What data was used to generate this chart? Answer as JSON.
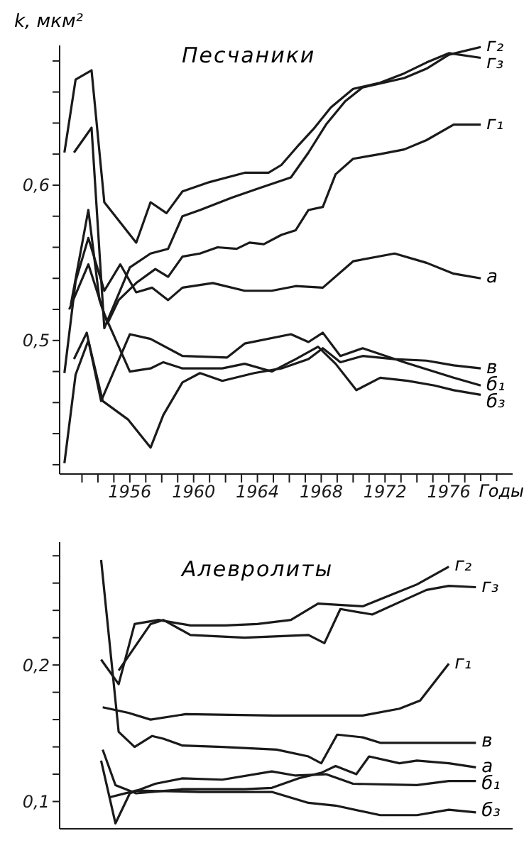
{
  "chart_data": [
    {
      "type": "line",
      "title": "Песчаники",
      "xlabel": "Годы",
      "ylabel": "k, мкм²",
      "xlim": [
        1951.6,
        1980
      ],
      "xticks": [
        {
          "value": 1953,
          "label": null
        },
        {
          "value": 1954,
          "label": null
        },
        {
          "value": 1955,
          "label": null
        },
        1956,
        {
          "value": 1957,
          "label": null
        },
        {
          "value": 1958,
          "label": null
        },
        {
          "value": 1959,
          "label": null
        },
        1960,
        {
          "value": 1961,
          "label": null
        },
        {
          "value": 1962,
          "label": null
        },
        {
          "value": 1963,
          "label": null
        },
        1964,
        {
          "value": 1965,
          "label": null
        },
        {
          "value": 1966,
          "label": null
        },
        {
          "value": 1967,
          "label": null
        },
        1968,
        {
          "value": 1969,
          "label": null
        },
        {
          "value": 1970,
          "label": null
        },
        {
          "value": 1971,
          "label": null
        },
        1972,
        {
          "value": 1973,
          "label": null
        },
        {
          "value": 1974,
          "label": null
        },
        {
          "value": 1975,
          "label": null
        },
        1976,
        {
          "value": 1977,
          "label": null
        },
        {
          "value": 1978,
          "label": null
        },
        {
          "value": 1979,
          "label": null
        }
      ],
      "ylim": [
        0.414,
        0.69
      ],
      "yticks": [
        {
          "value": 0.42,
          "label": null
        },
        {
          "value": 0.44,
          "label": null
        },
        {
          "value": 0.46,
          "label": null
        },
        {
          "value": 0.48,
          "label": null
        },
        {
          "value": 0.5,
          "label": "0,5"
        },
        {
          "value": 0.52,
          "label": null
        },
        {
          "value": 0.54,
          "label": null
        },
        {
          "value": 0.56,
          "label": null
        },
        {
          "value": 0.58,
          "label": null
        },
        {
          "value": 0.6,
          "label": "0,6"
        },
        {
          "value": 0.62,
          "label": null
        },
        {
          "value": 0.64,
          "label": null
        },
        {
          "value": 0.66,
          "label": null
        },
        {
          "value": 0.68,
          "label": null
        }
      ],
      "grid": false,
      "legend": false,
      "marker": "none",
      "series": [
        {
          "name": "г₂",
          "color": "#1a1a1a",
          "x": [
            1952.5,
            1953.6,
            1954.4,
            1956,
            1957.3,
            1958.4,
            1959.3,
            1960.4,
            1962.4,
            1964.1,
            1966.1,
            1967.2,
            1968.3,
            1969.5,
            1970.6,
            1973.2,
            1974.6,
            1976,
            1978
          ],
          "values": [
            0.621,
            0.637,
            0.508,
            0.547,
            0.556,
            0.559,
            0.58,
            0.584,
            0.592,
            0.598,
            0.605,
            0.621,
            0.639,
            0.654,
            0.663,
            0.669,
            0.675,
            0.684,
            0.689
          ]
        },
        {
          "name": "г₃",
          "color": "#1a1a1a",
          "x": [
            1951.9,
            1952.6,
            1953.6,
            1954.4,
            1956.4,
            1957.3,
            1958.3,
            1959.3,
            1961,
            1963.2,
            1964.7,
            1965.5,
            1966.6,
            1967.5,
            1968.6,
            1970,
            1971.7,
            1973.2,
            1974.6,
            1976,
            1978
          ],
          "values": [
            0.621,
            0.668,
            0.674,
            0.589,
            0.563,
            0.589,
            0.582,
            0.596,
            0.602,
            0.608,
            0.608,
            0.613,
            0.626,
            0.636,
            0.65,
            0.662,
            0.666,
            0.672,
            0.679,
            0.685,
            0.682
          ]
        },
        {
          "name": "г₁",
          "color": "#1a1a1a",
          "x": [
            1952.3,
            1953.4,
            1954.1,
            1954.6,
            1955.3,
            1956.4,
            1957.6,
            1958.4,
            1959.3,
            1960.4,
            1961.5,
            1962.7,
            1963.5,
            1964.4,
            1965.5,
            1966.4,
            1967.2,
            1968.1,
            1968.9,
            1970,
            1971.7,
            1973.2,
            1974.6,
            1976.3,
            1978
          ],
          "values": [
            0.523,
            0.584,
            0.526,
            0.511,
            0.526,
            0.537,
            0.546,
            0.541,
            0.554,
            0.556,
            0.56,
            0.559,
            0.563,
            0.562,
            0.568,
            0.571,
            0.584,
            0.586,
            0.607,
            0.617,
            0.62,
            0.623,
            0.629,
            0.639,
            0.639
          ]
        },
        {
          "name": "а",
          "color": "#1a1a1a",
          "x": [
            1951.9,
            1952.6,
            1953.4,
            1954.4,
            1955.4,
            1956.4,
            1957.4,
            1958.4,
            1959.3,
            1961.2,
            1963.2,
            1964.9,
            1966.4,
            1968.1,
            1970,
            1972.6,
            1974.6,
            1976.3,
            1978
          ],
          "values": [
            0.479,
            0.538,
            0.566,
            0.532,
            0.549,
            0.531,
            0.534,
            0.526,
            0.534,
            0.537,
            0.532,
            0.532,
            0.535,
            0.534,
            0.551,
            0.556,
            0.55,
            0.543,
            0.54
          ]
        },
        {
          "name": "в",
          "color": "#1a1a1a",
          "x": [
            1951.9,
            1952.6,
            1953.4,
            1954.3,
            1955.9,
            1957.3,
            1958.1,
            1959.3,
            1960.4,
            1961.8,
            1963.8,
            1965.5,
            1967.2,
            1968.1,
            1969.2,
            1970.6,
            1972.6,
            1974.6,
            1976.3,
            1978
          ],
          "values": [
            0.421,
            0.478,
            0.5,
            0.461,
            0.449,
            0.431,
            0.452,
            0.473,
            0.479,
            0.474,
            0.479,
            0.482,
            0.488,
            0.495,
            0.486,
            0.49,
            0.488,
            0.487,
            0.484,
            0.482
          ]
        },
        {
          "name": "б₁",
          "color": "#1a1a1a",
          "x": [
            1952.5,
            1953.3,
            1954.2,
            1956,
            1957.3,
            1959.3,
            1962.1,
            1963.2,
            1966.1,
            1967.2,
            1968.1,
            1969.2,
            1970.6,
            1973.2,
            1976.3,
            1978
          ],
          "values": [
            0.488,
            0.505,
            0.461,
            0.504,
            0.501,
            0.49,
            0.489,
            0.498,
            0.504,
            0.499,
            0.505,
            0.49,
            0.495,
            0.486,
            0.476,
            0.471
          ]
        },
        {
          "name": "б₃",
          "color": "#1a1a1a",
          "x": [
            1952.2,
            1953.4,
            1954.4,
            1956,
            1957.3,
            1958.1,
            1959.3,
            1961.8,
            1963.2,
            1964.9,
            1966.4,
            1967.8,
            1968.9,
            1970.2,
            1971.7,
            1973.4,
            1975.1,
            1976.3,
            1978
          ],
          "values": [
            0.52,
            0.549,
            0.517,
            0.48,
            0.482,
            0.486,
            0.482,
            0.482,
            0.485,
            0.48,
            0.488,
            0.496,
            0.485,
            0.468,
            0.476,
            0.474,
            0.471,
            0.468,
            0.465
          ]
        }
      ]
    },
    {
      "type": "line",
      "title": "Алевролиты",
      "tick_labels": "y",
      "xlim": [
        1951.6,
        1980
      ],
      "ylim": [
        0.08,
        0.29
      ],
      "yticks": [
        {
          "value": 0.1,
          "label": "0,1"
        },
        {
          "value": 0.12,
          "label": null
        },
        {
          "value": 0.14,
          "label": null
        },
        {
          "value": 0.16,
          "label": null
        },
        {
          "value": 0.18,
          "label": null
        },
        {
          "value": 0.2,
          "label": "0,2"
        },
        {
          "value": 0.22,
          "label": null
        },
        {
          "value": 0.24,
          "label": null
        },
        {
          "value": 0.26,
          "label": null
        },
        {
          "value": 0.28,
          "label": null
        }
      ],
      "grid": false,
      "legend": false,
      "marker": "none",
      "series": [
        {
          "name": "г₂",
          "color": "#1a1a1a",
          "x": [
            1954.2,
            1955.3,
            1956.3,
            1957.8,
            1959.8,
            1962,
            1964,
            1966.1,
            1967.8,
            1970.6,
            1972.3,
            1974,
            1976
          ],
          "values": [
            0.204,
            0.186,
            0.23,
            0.233,
            0.229,
            0.229,
            0.23,
            0.233,
            0.245,
            0.243,
            0.251,
            0.259,
            0.272
          ]
        },
        {
          "name": "г₃",
          "color": "#1a1a1a",
          "x": [
            1955.3,
            1957.3,
            1958.1,
            1959.8,
            1963.2,
            1967.2,
            1968.2,
            1969.2,
            1971.2,
            1972.9,
            1974.6,
            1976,
            1977.7
          ],
          "values": [
            0.196,
            0.23,
            0.233,
            0.222,
            0.22,
            0.222,
            0.216,
            0.241,
            0.237,
            0.246,
            0.255,
            0.258,
            0.257
          ]
        },
        {
          "name": "г₁",
          "color": "#1a1a1a",
          "x": [
            1954.3,
            1955.9,
            1957.3,
            1959.5,
            1965,
            1970.6,
            1972.9,
            1974.2,
            1976
          ],
          "values": [
            0.169,
            0.165,
            0.16,
            0.164,
            0.163,
            0.163,
            0.168,
            0.174,
            0.201
          ]
        },
        {
          "name": "в",
          "color": "#1a1a1a",
          "x": [
            1954.2,
            1955.3,
            1956.3,
            1957.4,
            1958.1,
            1959.3,
            1961.8,
            1965.2,
            1967.2,
            1968,
            1969,
            1970.6,
            1971.7,
            1977.7
          ],
          "values": [
            0.277,
            0.151,
            0.14,
            0.148,
            0.146,
            0.141,
            0.14,
            0.138,
            0.133,
            0.128,
            0.149,
            0.147,
            0.143,
            0.143
          ]
        },
        {
          "name": "а",
          "color": "#1a1a1a",
          "x": [
            1954.3,
            1955.1,
            1956.4,
            1959.3,
            1963.2,
            1964.9,
            1966.6,
            1968,
            1968.9,
            1970.2,
            1971,
            1972.9,
            1974,
            1976,
            1977.7
          ],
          "values": [
            0.138,
            0.112,
            0.106,
            0.109,
            0.109,
            0.11,
            0.117,
            0.121,
            0.126,
            0.12,
            0.133,
            0.128,
            0.13,
            0.128,
            0.125
          ]
        },
        {
          "name": "б₁",
          "color": "#1a1a1a",
          "x": [
            1954.2,
            1955.1,
            1956,
            1957.6,
            1959.3,
            1961.8,
            1964.9,
            1966.4,
            1968.3,
            1970,
            1974,
            1976,
            1977.7
          ],
          "values": [
            0.13,
            0.084,
            0.106,
            0.113,
            0.117,
            0.116,
            0.122,
            0.119,
            0.12,
            0.113,
            0.112,
            0.115,
            0.115
          ]
        },
        {
          "name": "б₃",
          "color": "#1a1a1a",
          "x": [
            1954.7,
            1956.4,
            1960.4,
            1964.9,
            1967.2,
            1968.9,
            1971.7,
            1974,
            1976,
            1977.7
          ],
          "values": [
            0.103,
            0.108,
            0.107,
            0.107,
            0.099,
            0.097,
            0.09,
            0.09,
            0.094,
            0.092
          ]
        }
      ]
    }
  ]
}
